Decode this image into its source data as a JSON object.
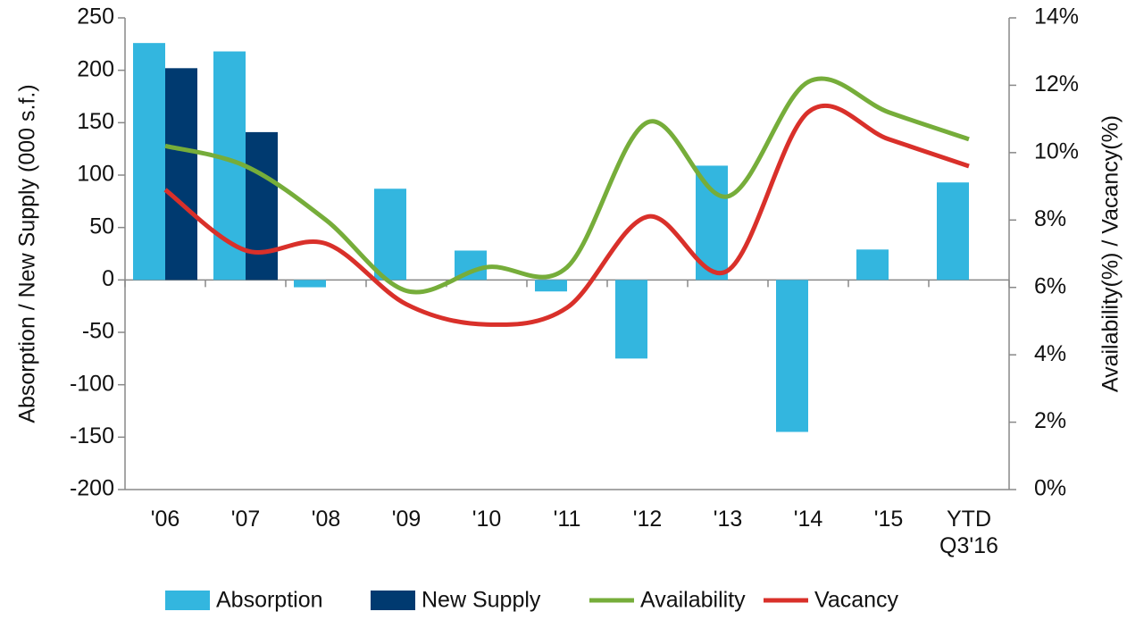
{
  "chart_data": {
    "type": "bar_line",
    "categories": [
      "'06",
      "'07",
      "'08",
      "'09",
      "'10",
      "'11",
      "'12",
      "'13",
      "'14",
      "'15",
      "YTD\nQ3'16"
    ],
    "series": [
      {
        "name": "Absorption",
        "type": "bar",
        "color": "#33b6df",
        "values": [
          226,
          218,
          -7,
          87,
          28,
          -11,
          -75,
          109,
          -145,
          29,
          93
        ]
      },
      {
        "name": "New Supply",
        "type": "bar",
        "color": "#003a70",
        "values": [
          202,
          141,
          0,
          0,
          0,
          0,
          0,
          0,
          0,
          0,
          0
        ]
      },
      {
        "name": "Availability",
        "type": "line",
        "axis": "y2",
        "color": "#76ad3a",
        "values": [
          10.2,
          9.6,
          8.0,
          5.9,
          6.6,
          6.6,
          10.9,
          8.7,
          12.1,
          11.2,
          10.4
        ]
      },
      {
        "name": "Vacancy",
        "type": "line",
        "axis": "y2",
        "color": "#d9302a",
        "values": [
          8.9,
          7.1,
          7.3,
          5.5,
          4.9,
          5.4,
          8.1,
          6.5,
          11.2,
          10.4,
          9.6
        ]
      }
    ],
    "y_label": "Absorption / New Supply (000 s.f.)",
    "y2_label": "Availability(%) / Vacancy(%)",
    "ylim": [
      -200,
      250
    ],
    "yticks": [
      -200,
      -150,
      -100,
      -50,
      0,
      50,
      100,
      150,
      200,
      250
    ],
    "y2lim": [
      0,
      14
    ],
    "y2ticks": [
      {
        "value": 0,
        "label": "0%"
      },
      {
        "value": 2,
        "label": "2%"
      },
      {
        "value": 4,
        "label": "4%"
      },
      {
        "value": 6,
        "label": "6%"
      },
      {
        "value": 8,
        "label": "8%"
      },
      {
        "value": 10,
        "label": "10%"
      },
      {
        "value": 12,
        "label": "12%"
      },
      {
        "value": 14,
        "label": "14%"
      }
    ],
    "legend": "bottom"
  }
}
